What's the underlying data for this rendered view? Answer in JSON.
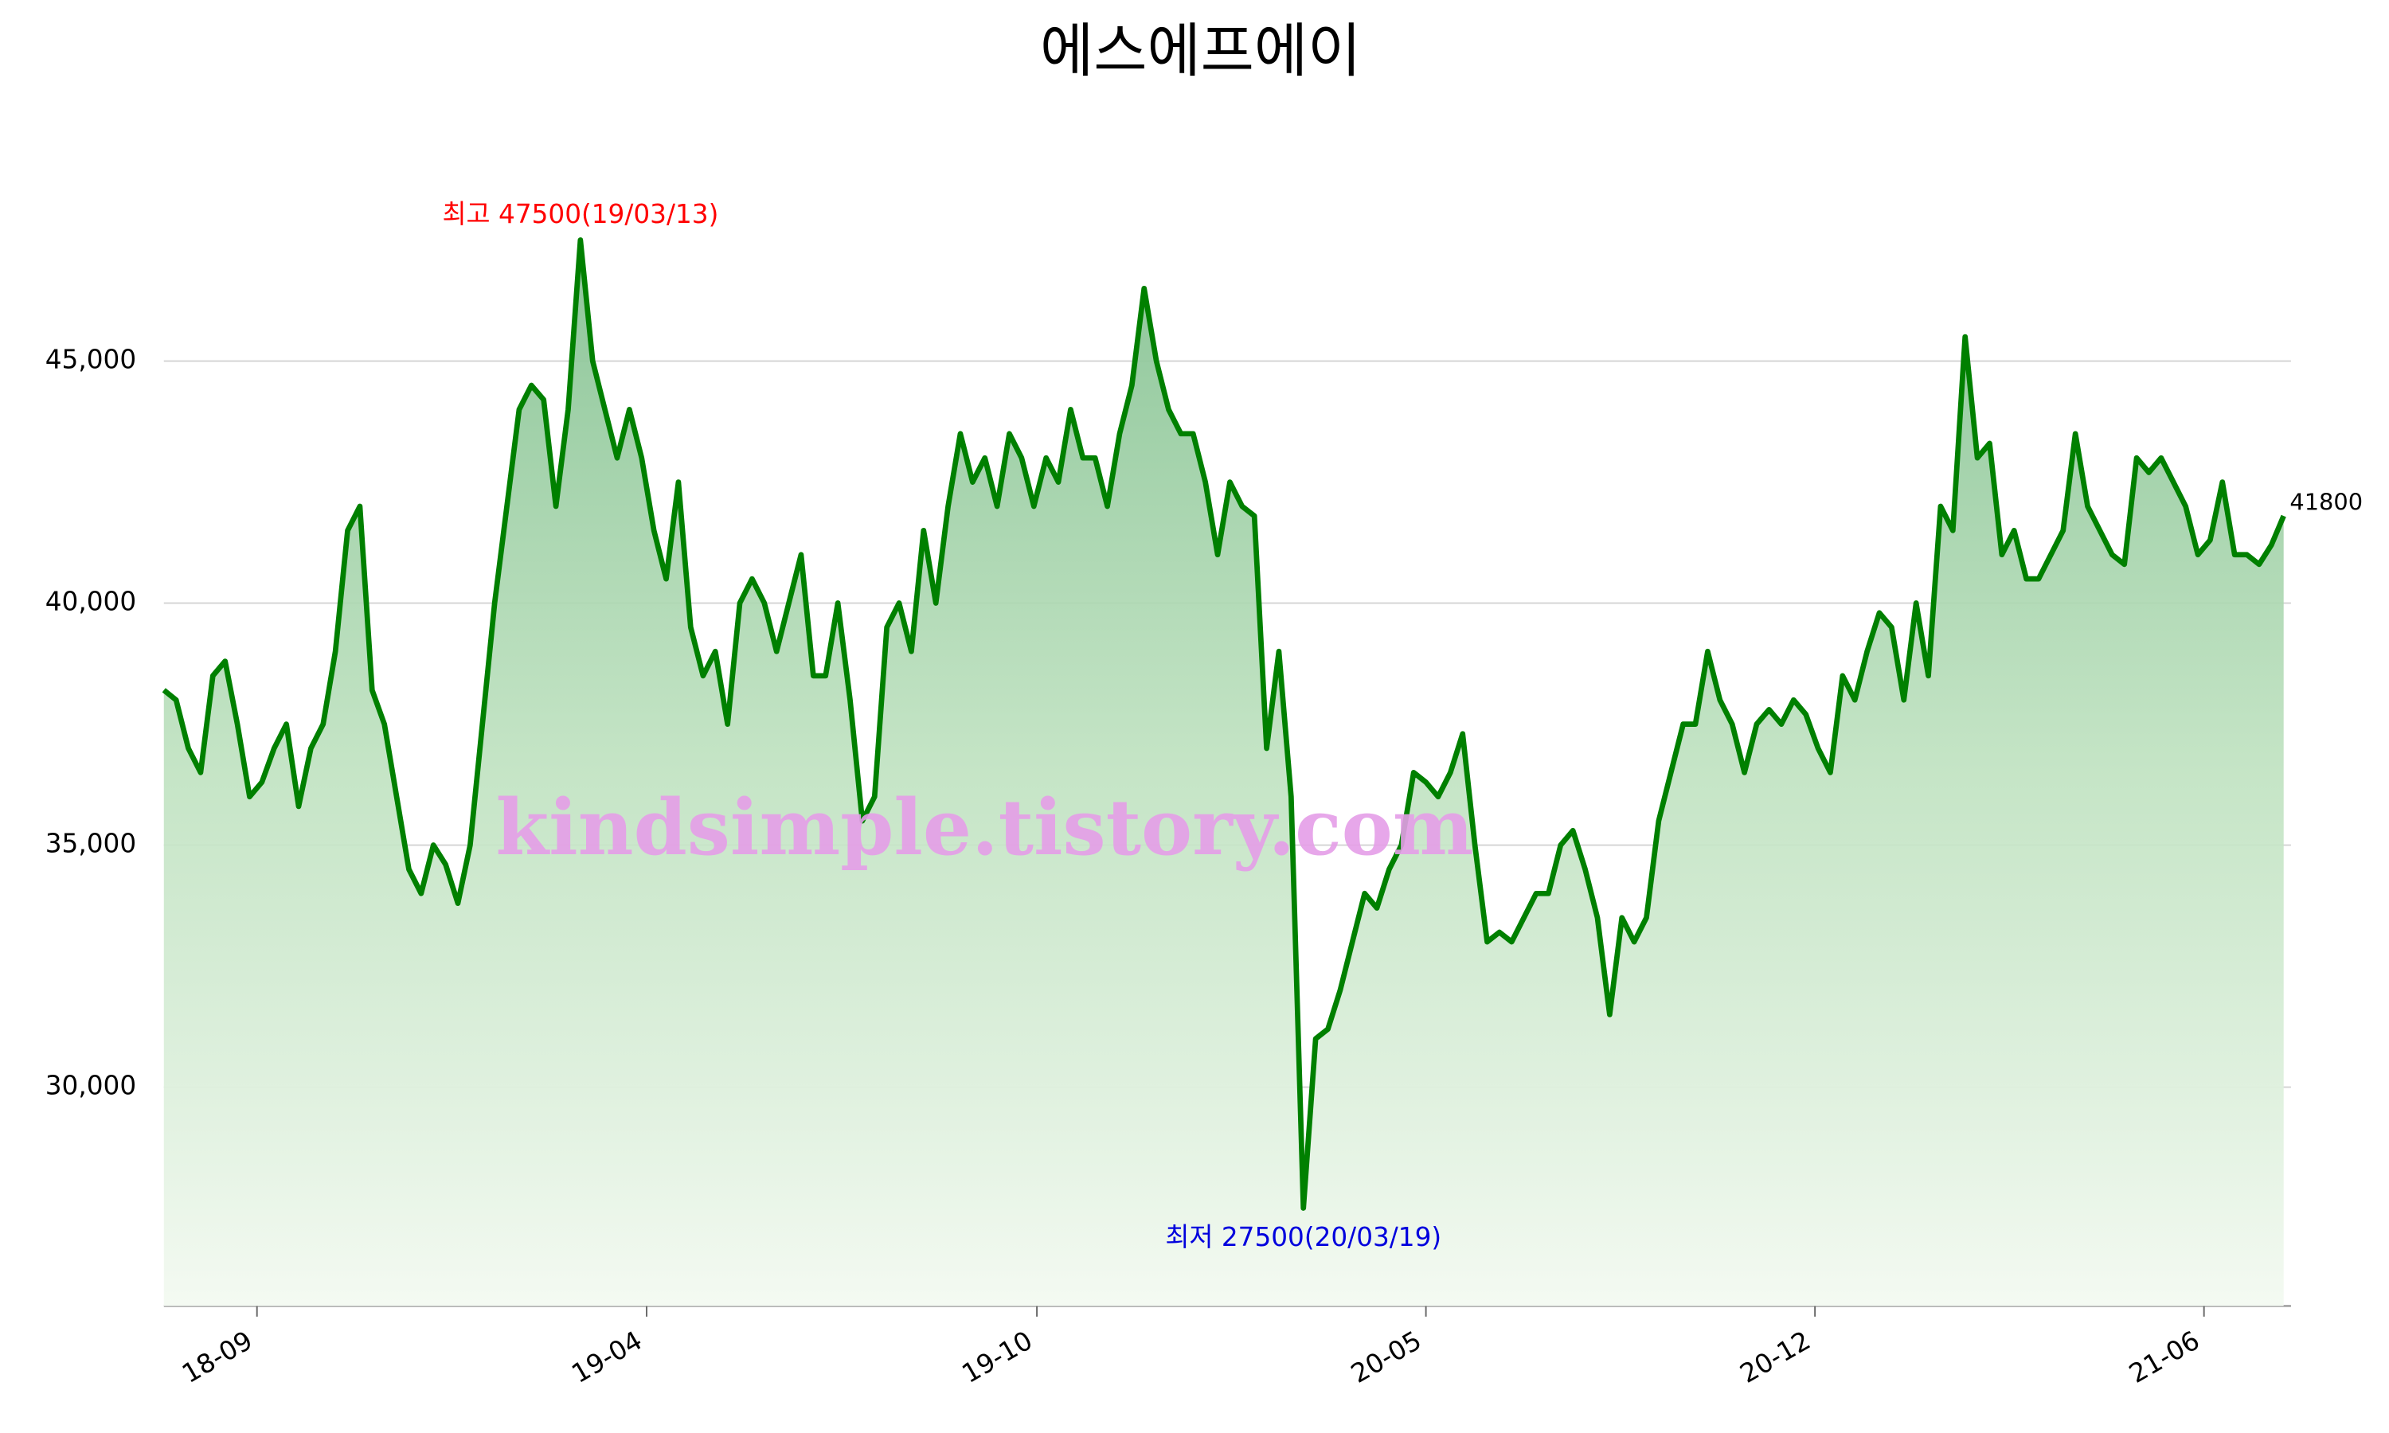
{
  "chart_data": {
    "type": "line",
    "title": "에스에프에이",
    "watermark": "kindsimple.tistory.com",
    "max_label": "최고 47500(19/03/13)",
    "min_label": "최저 27500(20/03/19)",
    "color": "#008000",
    "grid": true,
    "xlim": [
      0,
      173.6
    ],
    "ylim": [
      25480,
      48000
    ],
    "yticks": [
      {
        "value": 30000,
        "label": "30,000"
      },
      {
        "value": 35000,
        "label": "35,000"
      },
      {
        "value": 40000,
        "label": "40,000"
      },
      {
        "value": 45000,
        "label": "45,000"
      }
    ],
    "xticks": [
      {
        "value": 7.6,
        "label": "18-09"
      },
      {
        "value": 39.4,
        "label": "19-04"
      },
      {
        "value": 71.25,
        "label": "19-10"
      },
      {
        "value": 103,
        "label": "20-05"
      },
      {
        "value": 134.75,
        "label": "20-12"
      },
      {
        "value": 166.5,
        "label": "21-06"
      }
    ],
    "values": [
      38200,
      38000,
      37000,
      36500,
      38500,
      38800,
      37500,
      36000,
      36300,
      37000,
      37500,
      35800,
      37000,
      37500,
      39000,
      41500,
      42000,
      38200,
      37500,
      36000,
      34500,
      34000,
      35000,
      34600,
      33800,
      35000,
      37500,
      40000,
      42000,
      44000,
      44500,
      44200,
      42000,
      44000,
      47500,
      45000,
      44000,
      43000,
      44000,
      43000,
      41500,
      40500,
      42500,
      39500,
      38500,
      39000,
      37500,
      40000,
      40500,
      40000,
      39000,
      40000,
      41000,
      38500,
      38500,
      40000,
      38000,
      35500,
      36000,
      39500,
      40000,
      39000,
      41500,
      40000,
      42000,
      43500,
      42500,
      43000,
      42000,
      43500,
      43000,
      42000,
      43000,
      42500,
      44000,
      43000,
      43000,
      42000,
      43500,
      44500,
      46500,
      45000,
      44000,
      43500,
      43500,
      42500,
      41000,
      42500,
      42000,
      41800,
      37000,
      39000,
      36000,
      27500,
      31000,
      31200,
      32000,
      33000,
      34000,
      33700,
      34500,
      35000,
      36500,
      36300,
      36000,
      36500,
      37300,
      35000,
      33000,
      33200,
      33000,
      33500,
      34000,
      34000,
      35000,
      35300,
      34500,
      33500,
      31500,
      33500,
      33000,
      33500,
      35500,
      36500,
      37500,
      37500,
      39000,
      38000,
      37500,
      36500,
      37500,
      37800,
      37500,
      38000,
      37700,
      37000,
      36500,
      38500,
      38000,
      39000,
      39800,
      39500,
      38000,
      40000,
      38500,
      42000,
      41500,
      45500,
      43000,
      43300,
      41000,
      41500,
      40500,
      40500,
      41000,
      41500,
      43500,
      42000,
      41500,
      41000,
      40800,
      43000,
      42700,
      43000,
      42500,
      42000,
      41000,
      41300,
      42500,
      41000,
      41000,
      40800,
      41200,
      41800
    ]
  }
}
